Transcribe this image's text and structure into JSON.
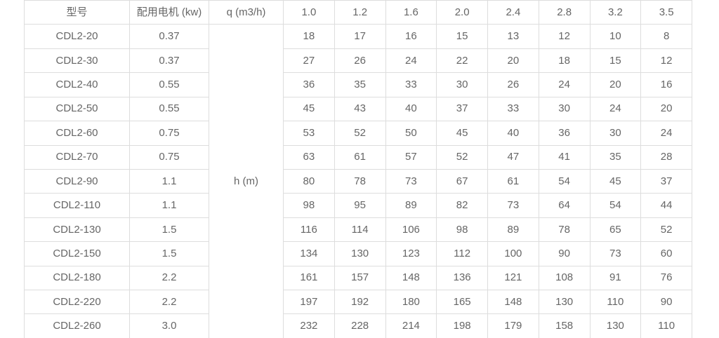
{
  "colors": {
    "border": "#dddddd",
    "text": "#666666",
    "background": "#ffffff"
  },
  "table": {
    "headers": {
      "model": "型号",
      "motor": "配用电机 (kw)",
      "flow": "q (m3/h)",
      "flow_values": [
        "1.0",
        "1.2",
        "1.6",
        "2.0",
        "2.4",
        "2.8",
        "3.2",
        "3.5"
      ]
    },
    "head_unit_label": "h (m)",
    "rows": [
      {
        "model": "CDL2-20",
        "motor": "0.37",
        "heads": [
          18,
          17,
          16,
          15,
          13,
          12,
          10,
          8
        ]
      },
      {
        "model": "CDL2-30",
        "motor": "0.37",
        "heads": [
          27,
          26,
          24,
          22,
          20,
          18,
          15,
          12
        ]
      },
      {
        "model": "CDL2-40",
        "motor": "0.55",
        "heads": [
          36,
          35,
          33,
          30,
          26,
          24,
          20,
          16
        ]
      },
      {
        "model": "CDL2-50",
        "motor": "0.55",
        "heads": [
          45,
          43,
          40,
          37,
          33,
          30,
          24,
          20
        ]
      },
      {
        "model": "CDL2-60",
        "motor": "0.75",
        "heads": [
          53,
          52,
          50,
          45,
          40,
          36,
          30,
          24
        ]
      },
      {
        "model": "CDL2-70",
        "motor": "0.75",
        "heads": [
          63,
          61,
          57,
          52,
          47,
          41,
          35,
          28
        ]
      },
      {
        "model": "CDL2-90",
        "motor": "1.1",
        "heads": [
          80,
          78,
          73,
          67,
          61,
          54,
          45,
          37
        ]
      },
      {
        "model": "CDL2-110",
        "motor": "1.1",
        "heads": [
          98,
          95,
          89,
          82,
          73,
          64,
          54,
          44
        ]
      },
      {
        "model": "CDL2-130",
        "motor": "1.5",
        "heads": [
          116,
          114,
          106,
          98,
          89,
          78,
          65,
          52
        ]
      },
      {
        "model": "CDL2-150",
        "motor": "1.5",
        "heads": [
          134,
          130,
          123,
          112,
          100,
          90,
          73,
          60
        ]
      },
      {
        "model": "CDL2-180",
        "motor": "2.2",
        "heads": [
          161,
          157,
          148,
          136,
          121,
          108,
          91,
          76
        ]
      },
      {
        "model": "CDL2-220",
        "motor": "2.2",
        "heads": [
          197,
          192,
          180,
          165,
          148,
          130,
          110,
          90
        ]
      },
      {
        "model": "CDL2-260",
        "motor": "3.0",
        "heads": [
          232,
          228,
          214,
          198,
          179,
          158,
          130,
          110
        ]
      }
    ]
  }
}
